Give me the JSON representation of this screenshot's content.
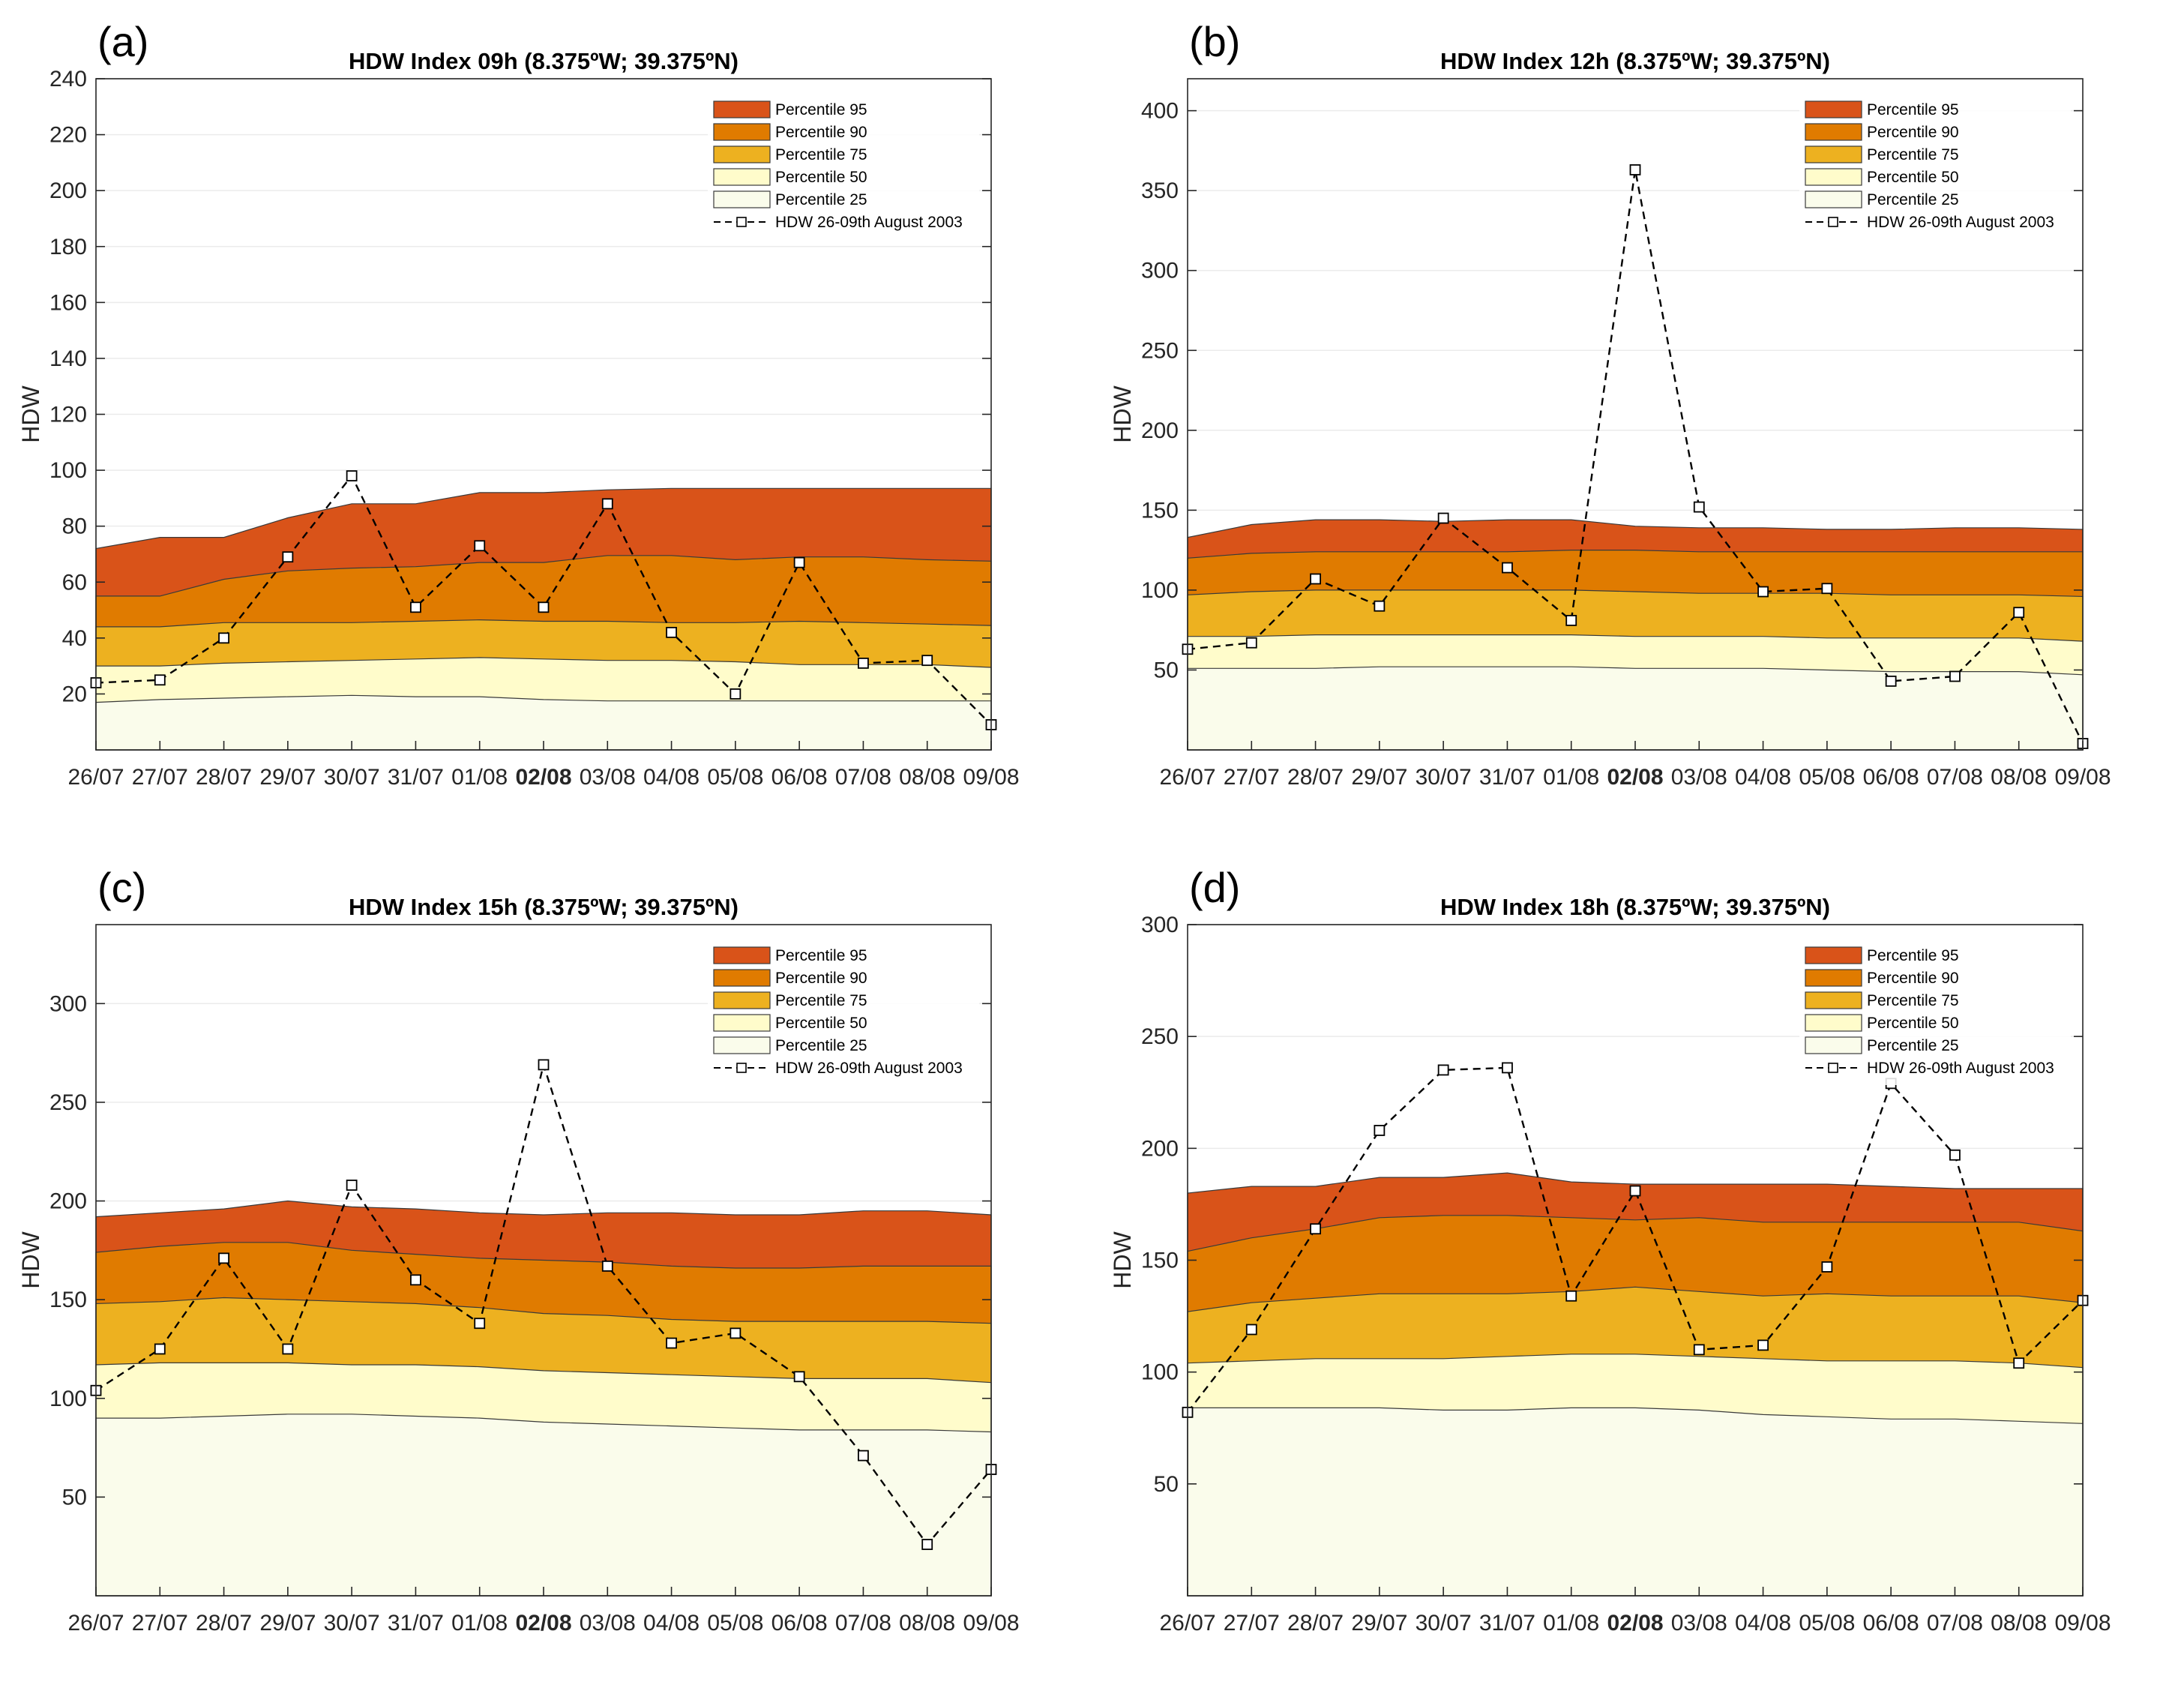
{
  "colors": {
    "p95": "#D95319",
    "p90": "#E07B00",
    "p75": "#EDB120",
    "p50": "#FFFCCB",
    "p25": "#FAFCEB",
    "observed_line": "#000000",
    "grid": "#EBEBEB",
    "axis": "#262626"
  },
  "chart_data": [
    {
      "id": "a",
      "panel_label": "(a)",
      "type": "area",
      "title": "HDW Index 09h (8.375ºW; 39.375ºN)",
      "ylabel": "HDW",
      "xlabel": "",
      "categories": [
        "26/07",
        "27/07",
        "28/07",
        "29/07",
        "30/07",
        "31/07",
        "01/08",
        "02/08",
        "03/08",
        "04/08",
        "05/08",
        "06/08",
        "07/08",
        "08/08",
        "09/08"
      ],
      "highlight_category": "02/08",
      "ylim": [
        0,
        240
      ],
      "yticks": [
        20,
        40,
        60,
        80,
        100,
        120,
        140,
        160,
        180,
        200,
        220,
        240
      ],
      "grid": true,
      "legend_position": "top-right",
      "legend": [
        "Percentile 95",
        "Percentile 90",
        "Percentile 75",
        "Percentile 50",
        "Percentile 25",
        "HDW 26-09th August 2003"
      ],
      "series": [
        {
          "name": "Percentile 95",
          "values": [
            72,
            76,
            76,
            83,
            88,
            88,
            92,
            92,
            93,
            93.5,
            93.5,
            93.5,
            93.5,
            93.5,
            93.5
          ]
        },
        {
          "name": "Percentile 90",
          "values": [
            55,
            55,
            61,
            64,
            65,
            65.5,
            67,
            67,
            69.5,
            69.5,
            68,
            69,
            69,
            68,
            67.5
          ]
        },
        {
          "name": "Percentile 75",
          "values": [
            44,
            44,
            45.5,
            45.5,
            45.5,
            46,
            46.5,
            46,
            46,
            45.5,
            45.5,
            46,
            45.5,
            45,
            44.5
          ]
        },
        {
          "name": "Percentile 50",
          "values": [
            30,
            30,
            31,
            31.5,
            32,
            32.5,
            33,
            32.5,
            32,
            32,
            31.5,
            30.5,
            30.5,
            30.5,
            29.5
          ]
        },
        {
          "name": "Percentile 25",
          "values": [
            17,
            18,
            18.5,
            19,
            19.5,
            19,
            19,
            18,
            17.5,
            17.5,
            17.5,
            17.5,
            17.5,
            17.5,
            17.5
          ]
        },
        {
          "name": "HDW 26-09th August 2003",
          "values": [
            24,
            25,
            40,
            69,
            98,
            51,
            73,
            51,
            88,
            42,
            20,
            67,
            31,
            32,
            9
          ]
        }
      ]
    },
    {
      "id": "b",
      "panel_label": "(b)",
      "type": "area",
      "title": "HDW Index 12h (8.375ºW; 39.375ºN)",
      "ylabel": "HDW",
      "xlabel": "",
      "categories": [
        "26/07",
        "27/07",
        "28/07",
        "29/07",
        "30/07",
        "31/07",
        "01/08",
        "02/08",
        "03/08",
        "04/08",
        "05/08",
        "06/08",
        "07/08",
        "08/08",
        "09/08"
      ],
      "highlight_category": "02/08",
      "ylim": [
        0,
        420
      ],
      "yticks": [
        50,
        100,
        150,
        200,
        250,
        300,
        350,
        400
      ],
      "grid": true,
      "legend_position": "top-right",
      "legend": [
        "Percentile 95",
        "Percentile 90",
        "Percentile 75",
        "Percentile 50",
        "Percentile 25",
        "HDW 26-09th August 2003"
      ],
      "series": [
        {
          "name": "Percentile 95",
          "values": [
            133,
            141,
            144,
            144,
            143,
            144,
            144,
            140,
            139,
            139,
            138,
            138,
            139,
            139,
            138
          ]
        },
        {
          "name": "Percentile 90",
          "values": [
            120,
            123,
            124,
            124,
            124,
            124,
            125,
            125,
            124,
            124,
            124,
            124,
            124,
            124,
            124
          ]
        },
        {
          "name": "Percentile 75",
          "values": [
            97,
            99,
            100,
            100,
            100,
            100,
            100,
            99,
            98,
            98,
            98,
            97,
            97,
            97,
            96
          ]
        },
        {
          "name": "Percentile 50",
          "values": [
            71,
            71,
            72,
            72,
            72,
            72,
            72,
            71,
            71,
            71,
            70,
            70,
            70,
            70,
            68
          ]
        },
        {
          "name": "Percentile 25",
          "values": [
            51,
            51,
            51,
            52,
            52,
            52,
            52,
            51,
            51,
            51,
            50,
            49,
            49,
            49,
            47
          ]
        },
        {
          "name": "HDW 26-09th August 2003",
          "values": [
            63,
            67,
            107,
            90,
            145,
            114,
            81,
            363,
            152,
            99,
            101,
            43,
            46,
            86,
            4
          ]
        }
      ]
    },
    {
      "id": "c",
      "panel_label": "(c)",
      "type": "area",
      "title": "HDW Index 15h (8.375ºW; 39.375ºN)",
      "ylabel": "HDW",
      "xlabel": "",
      "categories": [
        "26/07",
        "27/07",
        "28/07",
        "29/07",
        "30/07",
        "31/07",
        "01/08",
        "02/08",
        "03/08",
        "04/08",
        "05/08",
        "06/08",
        "07/08",
        "08/08",
        "09/08"
      ],
      "highlight_category": "02/08",
      "ylim": [
        0,
        340
      ],
      "yticks": [
        50,
        100,
        150,
        200,
        250,
        300
      ],
      "grid": true,
      "legend_position": "top-right",
      "legend": [
        "Percentile 95",
        "Percentile 90",
        "Percentile 75",
        "Percentile 50",
        "Percentile 25",
        "HDW 26-09th August 2003"
      ],
      "series": [
        {
          "name": "Percentile 95",
          "values": [
            192,
            194,
            196,
            200,
            197,
            196,
            194,
            193,
            194,
            194,
            193,
            193,
            195,
            195,
            193
          ]
        },
        {
          "name": "Percentile 90",
          "values": [
            174,
            177,
            179,
            179,
            175,
            173,
            171,
            170,
            169,
            167,
            166,
            166,
            167,
            167,
            167
          ]
        },
        {
          "name": "Percentile 75",
          "values": [
            148,
            149,
            151,
            150,
            149,
            148,
            146,
            143,
            142,
            140,
            139,
            139,
            139,
            139,
            138
          ]
        },
        {
          "name": "Percentile 50",
          "values": [
            117,
            118,
            118,
            118,
            117,
            117,
            116,
            114,
            113,
            112,
            111,
            110,
            110,
            110,
            108
          ]
        },
        {
          "name": "Percentile 25",
          "values": [
            90,
            90,
            91,
            92,
            92,
            91,
            90,
            88,
            87,
            86,
            85,
            84,
            84,
            84,
            83
          ]
        },
        {
          "name": "HDW 26-09th August 2003",
          "values": [
            104,
            125,
            171,
            125,
            208,
            160,
            138,
            269,
            167,
            128,
            133,
            111,
            71,
            26,
            64
          ]
        }
      ]
    },
    {
      "id": "d",
      "panel_label": "(d)",
      "type": "area",
      "title": "HDW Index 18h (8.375ºW; 39.375ºN)",
      "ylabel": "HDW",
      "xlabel": "",
      "categories": [
        "26/07",
        "27/07",
        "28/07",
        "29/07",
        "30/07",
        "31/07",
        "01/08",
        "02/08",
        "03/08",
        "04/08",
        "05/08",
        "06/08",
        "07/08",
        "08/08",
        "09/08"
      ],
      "highlight_category": "02/08",
      "ylim": [
        0,
        300
      ],
      "yticks": [
        50,
        100,
        150,
        200,
        250,
        300
      ],
      "grid": true,
      "legend_position": "top-right",
      "legend": [
        "Percentile 95",
        "Percentile 90",
        "Percentile 75",
        "Percentile 50",
        "Percentile 25",
        "HDW 26-09th August 2003"
      ],
      "series": [
        {
          "name": "Percentile 95",
          "values": [
            180,
            183,
            183,
            187,
            187,
            189,
            185,
            184,
            184,
            184,
            184,
            183,
            182,
            182,
            182
          ]
        },
        {
          "name": "Percentile 90",
          "values": [
            154,
            160,
            164,
            169,
            170,
            170,
            169,
            168,
            169,
            167,
            167,
            167,
            167,
            167,
            163
          ]
        },
        {
          "name": "Percentile 75",
          "values": [
            127,
            131,
            133,
            135,
            135,
            135,
            136,
            138,
            136,
            134,
            135,
            134,
            134,
            134,
            131
          ]
        },
        {
          "name": "Percentile 50",
          "values": [
            104,
            105,
            106,
            106,
            106,
            107,
            108,
            108,
            107,
            106,
            105,
            105,
            105,
            104,
            102
          ]
        },
        {
          "name": "Percentile 25",
          "values": [
            84,
            84,
            84,
            84,
            83,
            83,
            84,
            84,
            83,
            81,
            80,
            79,
            79,
            78,
            77
          ]
        },
        {
          "name": "HDW 26-09th August 2003",
          "values": [
            82,
            119,
            164,
            208,
            235,
            236,
            134,
            181,
            110,
            112,
            147,
            229,
            197,
            104,
            132
          ]
        }
      ]
    }
  ]
}
